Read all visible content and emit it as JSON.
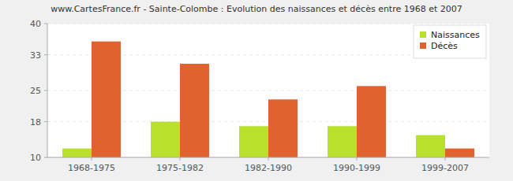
{
  "chart_data": {
    "type": "bar",
    "title": "www.CartesFrance.fr - Sainte-Colombe : Evolution des naissances et décès entre 1968 et 2007",
    "categories": [
      "1968-1975",
      "1975-1982",
      "1982-1990",
      "1990-1999",
      "1999-2007"
    ],
    "series": [
      {
        "name": "Naissances",
        "color": "#b9e02b",
        "values": [
          12,
          18,
          17,
          17,
          15
        ]
      },
      {
        "name": "Décès",
        "color": "#e0632f",
        "values": [
          36,
          31,
          23,
          26,
          12
        ]
      }
    ],
    "ylim": [
      10,
      40
    ],
    "yticks": [
      10,
      18,
      25,
      33,
      40
    ],
    "grid": true,
    "legend": "top-right"
  }
}
